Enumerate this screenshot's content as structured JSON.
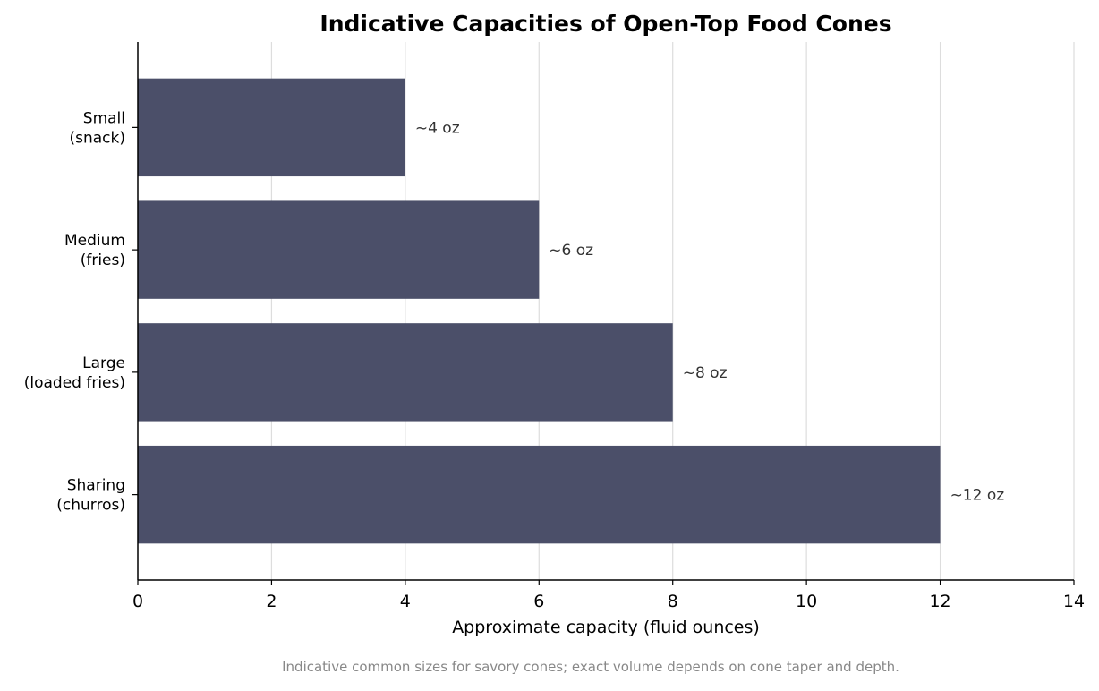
{
  "chart_data": {
    "type": "bar",
    "orientation": "horizontal",
    "title": "Indicative Capacities of Open-Top Food Cones",
    "xlabel": "Approximate capacity (fluid ounces)",
    "ylabel": "",
    "categories": [
      [
        "Small",
        "(snack)"
      ],
      [
        "Medium",
        "(fries)"
      ],
      [
        "Large",
        "(loaded fries)"
      ],
      [
        "Sharing",
        "(churros)"
      ]
    ],
    "values": [
      4,
      6,
      8,
      12
    ],
    "data_labels": [
      "~4 oz",
      "~6 oz",
      "~8 oz",
      "~12 oz"
    ],
    "xlim": [
      0,
      14
    ],
    "x_ticks": [
      0,
      2,
      4,
      6,
      8,
      10,
      12,
      14
    ],
    "grid": "vertical",
    "legend": "none",
    "footnote": "Indicative common sizes for savory cones; exact volume depends on cone taper and depth."
  },
  "colors": {
    "bar": "#4b4f69",
    "grid": "#dddddd",
    "axis": "#000000",
    "data_label": "#333333",
    "footnote": "#888888"
  }
}
